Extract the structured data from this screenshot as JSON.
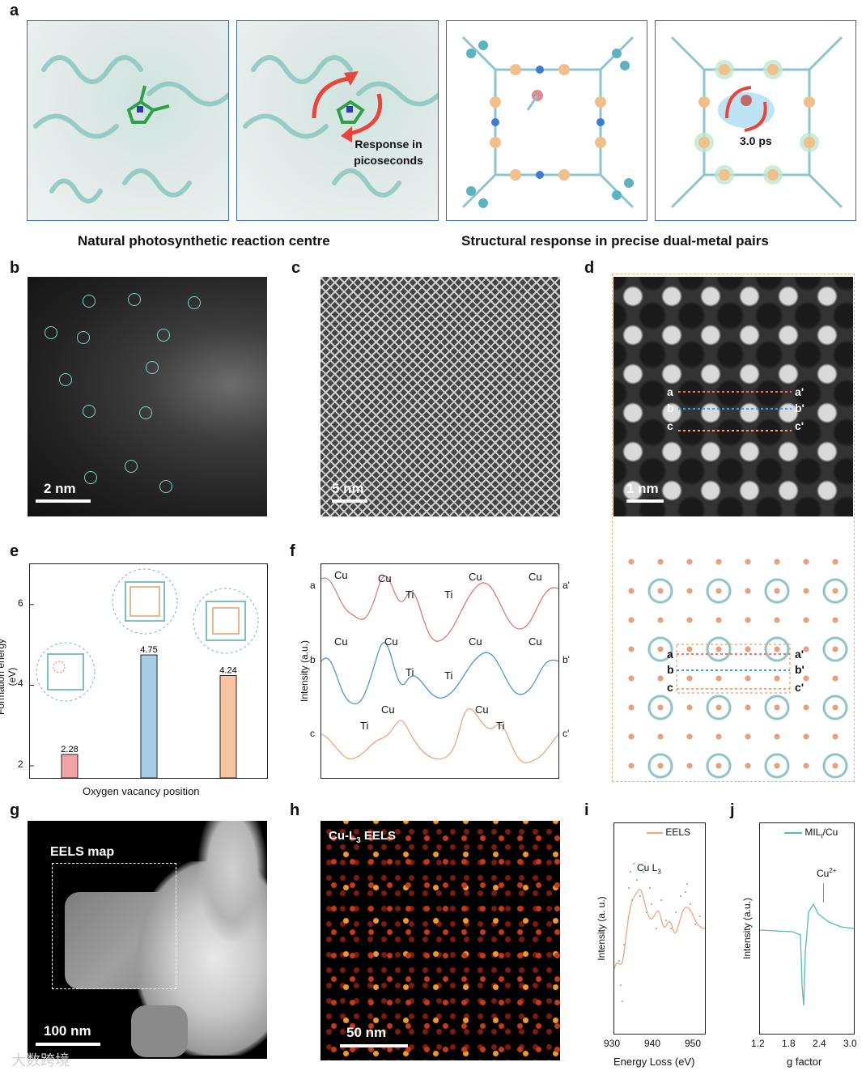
{
  "panel_labels": {
    "a": "a",
    "b": "b",
    "c": "c",
    "d": "d",
    "e": "e",
    "f": "f",
    "g": "g",
    "h": "h",
    "i": "i",
    "j": "j"
  },
  "panel_a": {
    "response_text_line1": "Response in",
    "response_text_line2": "picoseconds",
    "time_label": "3.0 ps",
    "caption_left": "Natural photosynthetic reaction centre",
    "caption_right": "Structural response in precise dual-metal pairs"
  },
  "panel_b": {
    "scalebar": "2 nm"
  },
  "panel_c": {
    "scalebar": "5 nm"
  },
  "panel_d": {
    "scalebar": "1 nm",
    "lines": [
      "a",
      "b",
      "c"
    ],
    "lines_end": [
      "a'",
      "b'",
      "c'"
    ]
  },
  "panel_e": {
    "ylabel": "Formation energy (eV)",
    "xlabel": "Oxygen vacancy position",
    "yticks": [
      "2",
      "4",
      "6"
    ],
    "bar_labels": [
      "2.28",
      "4.75",
      "4.24"
    ]
  },
  "panel_f": {
    "ylabel": "Intensity (a.u.)",
    "row_a": {
      "start": "a",
      "end": "a'",
      "peaks": [
        "Cu",
        "Cu",
        "Ti",
        "Ti",
        "Cu",
        "Cu"
      ]
    },
    "row_b": {
      "start": "b",
      "end": "b'",
      "peaks": [
        "Cu",
        "Cu",
        "Ti",
        "Ti",
        "Cu",
        "Cu"
      ]
    },
    "row_c": {
      "start": "c",
      "end": "c'",
      "peaks": [
        "Ti",
        "Cu",
        "Cu",
        "Ti"
      ]
    }
  },
  "panel_g": {
    "map_label": "EELS map",
    "scalebar": "100 nm"
  },
  "panel_h": {
    "title_prefix": "Cu-L",
    "title_sub": "3",
    "title_suffix": " EELS",
    "scalebar": "50 nm"
  },
  "panel_i": {
    "legend": "EELS",
    "annotation_prefix": "Cu L",
    "annotation_sub": "3",
    "ylabel": "Intensity (a. u.)",
    "xlabel": "Energy Loss (eV)",
    "xticks": [
      "930",
      "940",
      "950"
    ]
  },
  "panel_j": {
    "legend_prefix": "MIL",
    "legend_sub": "t",
    "legend_suffix": "/Cu",
    "annotation": "Cu",
    "annotation_sup": "2+",
    "ylabel": "Intensity (a.u.)",
    "xlabel": "g factor",
    "xticks": [
      "1.2",
      "1.8",
      "2.4",
      "3.0"
    ]
  },
  "watermark": "大数跨境",
  "colors": {
    "red": "#e07a75",
    "blue": "#4a9bd1",
    "orange": "#f2a57c",
    "bar_pink": "#f2a3a3",
    "bar_blue": "#a8cde8",
    "bar_orange": "#f8c4a2",
    "teal": "#53bfae",
    "frame": "#3b6bb5",
    "dashed_orange": "#f0b27a"
  },
  "chart_data": [
    {
      "type": "bar",
      "categories": [
        "",
        "",
        ""
      ],
      "values": [
        2.28,
        4.75,
        4.24
      ],
      "ylabel": "Formation energy (eV)",
      "xlabel": "Oxygen vacancy position",
      "ylim": [
        1.7,
        7.0
      ]
    }
  ]
}
